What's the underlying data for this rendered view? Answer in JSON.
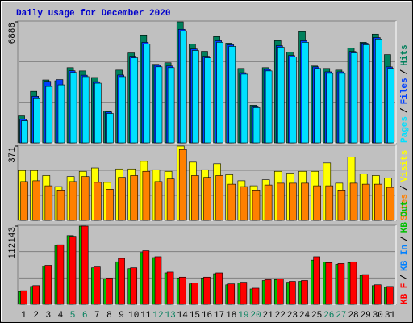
{
  "title": "Daily usage for December 2020",
  "legend_separator": "/",
  "x_axis": {
    "categories": [
      "1",
      "2",
      "3",
      "4",
      "5",
      "6",
      "7",
      "8",
      "9",
      "10",
      "11",
      "12",
      "13",
      "14",
      "15",
      "16",
      "17",
      "18",
      "19",
      "20",
      "21",
      "22",
      "23",
      "24",
      "25",
      "26",
      "27",
      "28",
      "29",
      "30",
      "31"
    ],
    "colors": [
      "#000000",
      "#000000",
      "#000000",
      "#000000",
      "#00805c",
      "#00805c",
      "#000000",
      "#000000",
      "#000000",
      "#000000",
      "#000000",
      "#00805c",
      "#00805c",
      "#000000",
      "#000000",
      "#000000",
      "#000000",
      "#000000",
      "#00805c",
      "#00805c",
      "#000000",
      "#000000",
      "#000000",
      "#000000",
      "#000000",
      "#00805c",
      "#00805c",
      "#000000",
      "#000000",
      "#000000",
      "#000000"
    ]
  },
  "chart_data": [
    {
      "type": "bar",
      "ylim": [
        0,
        6886
      ],
      "yticks": [
        6886
      ],
      "grid": true,
      "series": [
        {
          "name": "Pages",
          "color": "#00e0ff",
          "values": [
            1256,
            2558,
            3209,
            3302,
            4000,
            3767,
            3395,
            1675,
            3767,
            4837,
            5627,
            4325,
            4278,
            6372,
            5255,
            4837,
            5720,
            5488,
            3906,
            2000,
            4092,
            5441,
            4883,
            5720,
            4232,
            3953,
            3953,
            5115,
            5581,
            5906,
            4232
          ]
        },
        {
          "name": "Files",
          "color": "#0040ff",
          "values": [
            1350,
            2650,
            3500,
            3600,
            4100,
            3850,
            3480,
            1760,
            3860,
            4930,
            5720,
            4410,
            4370,
            6460,
            5340,
            4930,
            5810,
            5580,
            3990,
            2090,
            4180,
            5530,
            4970,
            5810,
            4320,
            4040,
            4040,
            5200,
            5670,
            5990,
            4320
          ]
        },
        {
          "name": "Hits",
          "color": "#00805c",
          "values": [
            1535,
            2930,
            3580,
            3534,
            4278,
            4092,
            3720,
            1814,
            4139,
            5115,
            6138,
            4464,
            4557,
            6886,
            5627,
            5208,
            6045,
            5673,
            4232,
            2139,
            4278,
            5813,
            5162,
            6324,
            4371,
            4232,
            4139,
            5394,
            5720,
            6185,
            5022
          ]
        }
      ]
    },
    {
      "type": "bar",
      "ylim": [
        0,
        371
      ],
      "yticks": [
        371
      ],
      "grid": true,
      "series": [
        {
          "name": "Sites",
          "color": "#ff8000",
          "values": [
            194,
            198,
            173,
            152,
            194,
            219,
            190,
            156,
            215,
            224,
            245,
            194,
            207,
            354,
            224,
            215,
            224,
            181,
            169,
            152,
            177,
            186,
            186,
            186,
            173,
            173,
            152,
            186,
            181,
            181,
            165
          ]
        },
        {
          "name": "Visits",
          "color": "#ffff00",
          "values": [
            249,
            249,
            224,
            169,
            219,
            245,
            262,
            190,
            257,
            257,
            295,
            253,
            245,
            371,
            291,
            253,
            283,
            228,
            198,
            173,
            203,
            245,
            236,
            245,
            245,
            287,
            186,
            316,
            232,
            224,
            211
          ]
        }
      ]
    },
    {
      "type": "bar",
      "ylim": [
        0,
        112143
      ],
      "yticks": [
        112143
      ],
      "grid": true,
      "series": [
        {
          "name": "KB F",
          "color": "#ff0000",
          "values": [
            19504,
            26818,
            56074,
            85330,
            97520,
            112143,
            53636,
            37789,
            65826,
            52417,
            76797,
            68264,
            46322,
            39008,
            30475,
            39008,
            45103,
            29256,
            31694,
            23161,
            35351,
            36570,
            32913,
            34132,
            68264,
            59731,
            58512,
            60950,
            42665,
            28037,
            25599
          ]
        },
        {
          "name": "KB In",
          "color": "#0080ff"
        },
        {
          "name": "KB Out",
          "color": "#00c000",
          "values": [
            18300,
            25600,
            55000,
            84500,
            98500,
            112143,
            52400,
            36600,
            61000,
            51200,
            74300,
            67000,
            45100,
            37800,
            29300,
            37800,
            43900,
            28000,
            30500,
            22000,
            34100,
            35400,
            31700,
            32900,
            63400,
            60900,
            57300,
            59700,
            41500,
            26800,
            24400
          ]
        }
      ]
    }
  ]
}
